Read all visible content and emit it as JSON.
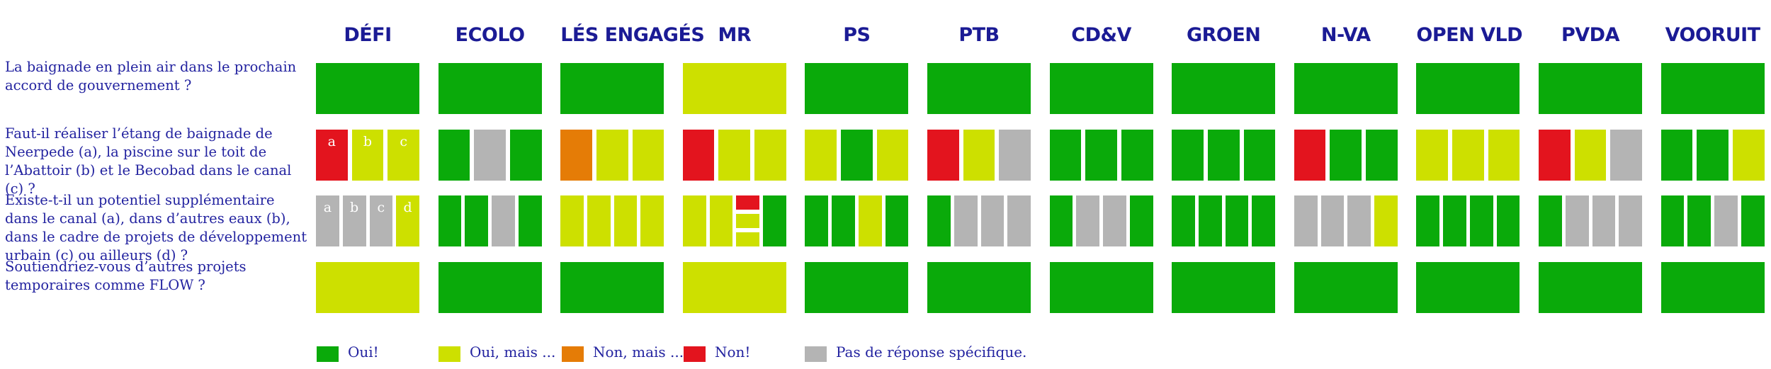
{
  "colors": {
    "oui": "#0aaa0a",
    "oui_mais": "#cde000",
    "non_mais": "#e57c06",
    "non": "#e3141e",
    "pas_de_reponse": "#b4b4b4"
  },
  "chart_data": {
    "type": "table",
    "parties": [
      "DÉFI",
      "ECOLO",
      "LÉS ENGAGÉS",
      "MR",
      "PS",
      "PTB",
      "CD&V",
      "GROEN",
      "N-VA",
      "OPEN VLD",
      "PVDA",
      "VOORUIT"
    ],
    "questions": [
      {
        "text": "La baignade en plein air dans le prochain accord de gouvernement ?",
        "letters": [],
        "answers": [
          [
            "oui"
          ],
          [
            "oui"
          ],
          [
            "oui"
          ],
          [
            "oui_mais"
          ],
          [
            "oui"
          ],
          [
            "oui"
          ],
          [
            "oui"
          ],
          [
            "oui"
          ],
          [
            "oui"
          ],
          [
            "oui"
          ],
          [
            "oui"
          ],
          [
            "oui"
          ]
        ]
      },
      {
        "text": "Faut-il réaliser l’étang de baignade de Neerpede (a), la piscine sur le toit de l’Abattoir (b) et le Becobad dans le canal (c) ?",
        "letters": [
          "a",
          "b",
          "c"
        ],
        "answers": [
          [
            "non",
            "oui_mais",
            "oui_mais"
          ],
          [
            "oui",
            "pas_de_reponse",
            "oui"
          ],
          [
            "non_mais",
            "oui_mais",
            "oui_mais"
          ],
          [
            "non",
            "oui_mais",
            "oui_mais"
          ],
          [
            "oui_mais",
            "oui",
            "oui_mais"
          ],
          [
            "non",
            "oui_mais",
            "pas_de_reponse"
          ],
          [
            "oui",
            "oui",
            "oui"
          ],
          [
            "oui",
            "oui",
            "oui"
          ],
          [
            "non",
            "oui",
            "oui"
          ],
          [
            "oui_mais",
            "oui_mais",
            "oui_mais"
          ],
          [
            "non",
            "oui_mais",
            "pas_de_reponse"
          ],
          [
            "oui",
            "oui",
            "oui_mais"
          ]
        ]
      },
      {
        "text": "Existe-t-il un potentiel supplémentaire dans le canal (a), dans d’autres eaux (b), dans le cadre de projets de développement urbain (c) ou ailleurs (d) ?",
        "letters": [
          "a",
          "b",
          "c",
          "d"
        ],
        "answers": [
          [
            "pas_de_reponse",
            "pas_de_reponse",
            "pas_de_reponse",
            "oui_mais"
          ],
          [
            "oui",
            "oui",
            "pas_de_reponse",
            "oui"
          ],
          [
            "oui_mais",
            "oui_mais",
            "oui_mais",
            "oui_mais"
          ],
          [
            "oui_mais",
            "oui_mais",
            [
              "non",
              "oui_mais",
              "oui_mais"
            ],
            "oui"
          ],
          [
            "oui",
            "oui",
            "oui_mais",
            "oui"
          ],
          [
            "oui",
            "pas_de_reponse",
            "pas_de_reponse",
            "pas_de_reponse"
          ],
          [
            "oui",
            "pas_de_reponse",
            "pas_de_reponse",
            "oui"
          ],
          [
            "oui",
            "oui",
            "oui",
            "oui"
          ],
          [
            "pas_de_reponse",
            "pas_de_reponse",
            "pas_de_reponse",
            "oui_mais"
          ],
          [
            "oui",
            "oui",
            "oui",
            "oui"
          ],
          [
            "oui",
            "pas_de_reponse",
            "pas_de_reponse",
            "pas_de_reponse"
          ],
          [
            "oui",
            "oui",
            "pas_de_reponse",
            "oui"
          ]
        ]
      },
      {
        "text": "Soutiendriez-vous d’autres projets temporaires comme FLOW ?",
        "letters": [],
        "answers": [
          [
            "oui_mais"
          ],
          [
            "oui"
          ],
          [
            "oui"
          ],
          [
            "oui_mais"
          ],
          [
            "oui"
          ],
          [
            "oui"
          ],
          [
            "oui"
          ],
          [
            "oui"
          ],
          [
            "oui"
          ],
          [
            "oui"
          ],
          [
            "oui"
          ],
          [
            "oui"
          ]
        ]
      }
    ],
    "legend": [
      {
        "key": "oui",
        "label": "Oui!"
      },
      {
        "key": "oui_mais",
        "label": "Oui, mais ..."
      },
      {
        "key": "non_mais",
        "label": "Non, mais ..."
      },
      {
        "key": "non",
        "label": "Non!"
      },
      {
        "key": "pas_de_reponse",
        "label": "Pas de réponse spécifique."
      }
    ]
  }
}
